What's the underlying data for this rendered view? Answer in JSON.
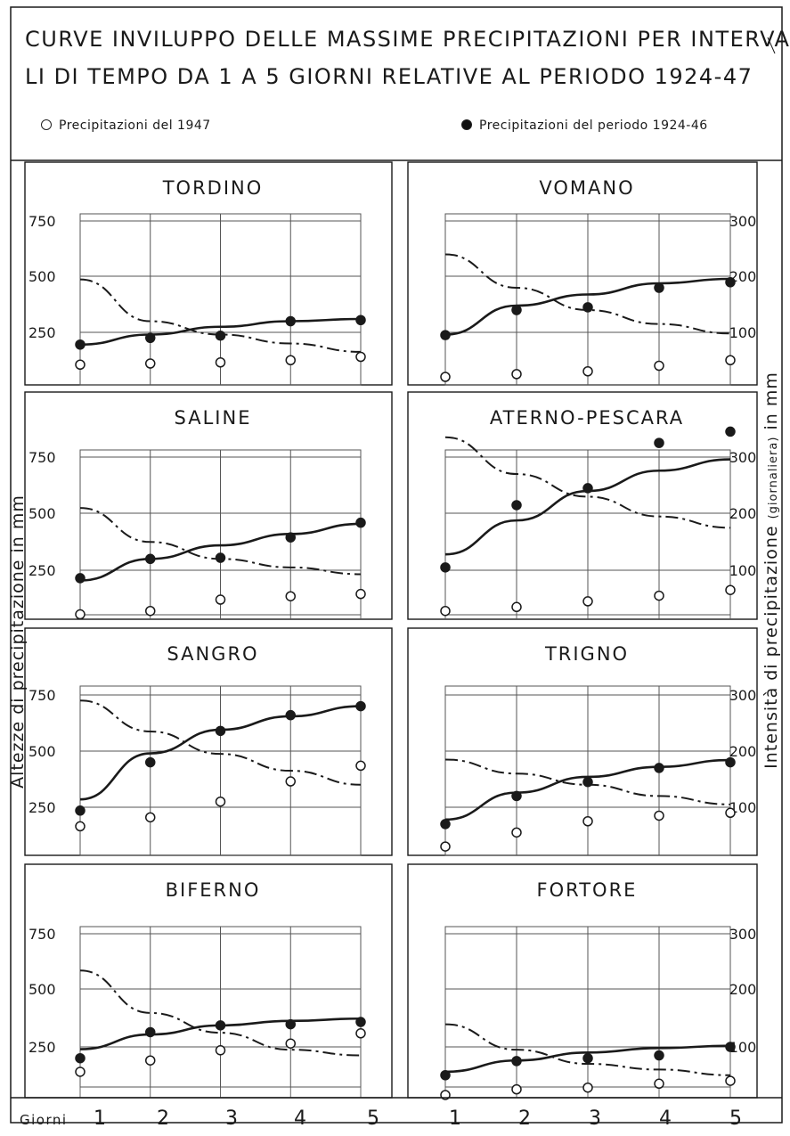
{
  "header": {
    "title_line1": "CURVE INVILUPPO DELLE MASSIME PRECIPITAZIONI PER INTERVAL",
    "title_line2": "LI DI TEMPO DA 1 A 5 GIORNI RELATIVE AL PERIODO 1924-47",
    "legend_1947": "Precipitazioni del 1947",
    "legend_period": "Precipitazioni del periodo 1924-46"
  },
  "axes": {
    "left_label": "Altezze di precipitazione in mm",
    "right_label_a": "Intensità di precipitazione ",
    "right_label_b": "(giornaliera)",
    "right_label_c": " in mm",
    "x_axis_title": "Giorni",
    "x_ticks": [
      "1",
      "2",
      "3",
      "4",
      "5"
    ]
  },
  "colors": {
    "ink": "#1a1a1a",
    "paper": "#ffffff"
  },
  "chart_data": [
    {
      "type": "scatter",
      "title": "TORDINO",
      "x": [
        1,
        2,
        3,
        4,
        5
      ],
      "left_ticks": [
        "750",
        "500",
        "250"
      ],
      "right_ticks": [],
      "ylim": [
        0,
        750
      ],
      "ylim_right": [
        0,
        300
      ],
      "series": [
        {
          "name": "Precipitazioni del 1947",
          "marker": "open",
          "values": [
            105,
            110,
            115,
            125,
            140
          ]
        },
        {
          "name": "Precipitazioni del periodo 1924-46",
          "marker": "filled",
          "values": [
            195,
            225,
            235,
            300,
            305
          ]
        }
      ],
      "envelope_altezze": [
        195,
        240,
        275,
        300,
        310
      ],
      "envelope_intensita": [
        195,
        120,
        96,
        80,
        65
      ]
    },
    {
      "type": "scatter",
      "title": "VOMANO",
      "x": [
        1,
        2,
        3,
        4,
        5
      ],
      "left_ticks": [],
      "right_ticks": [
        "300",
        "200",
        "100"
      ],
      "ylim": [
        0,
        750
      ],
      "ylim_right": [
        0,
        300
      ],
      "series": [
        {
          "name": "Precipitazioni del 1947",
          "marker": "open",
          "values": [
            20,
            25,
            30,
            40,
            50
          ]
        },
        {
          "name": "Precipitazioni del periodo 1924-46",
          "marker": "filled",
          "values": [
            95,
            140,
            145,
            180,
            190
          ]
        }
      ],
      "envelope_altezze": [
        240,
        370,
        420,
        470,
        490
      ],
      "envelope_intensita": [
        240,
        180,
        140,
        115,
        98
      ]
    },
    {
      "type": "scatter",
      "title": "SALINE",
      "x": [
        1,
        2,
        3,
        4,
        5
      ],
      "left_ticks": [
        "750",
        "500",
        "250"
      ],
      "right_ticks": [],
      "ylim": [
        0,
        750
      ],
      "ylim_right": [
        0,
        300
      ],
      "series": [
        {
          "name": "Precipitazioni del 1947",
          "marker": "open",
          "values": [
            55,
            70,
            120,
            135,
            145
          ]
        },
        {
          "name": "Precipitazioni del periodo 1924-46",
          "marker": "filled",
          "values": [
            215,
            300,
            305,
            395,
            460
          ]
        }
      ],
      "envelope_altezze": [
        205,
        300,
        360,
        410,
        455
      ],
      "envelope_intensita": [
        210,
        150,
        120,
        105,
        93
      ]
    },
    {
      "type": "scatter",
      "title": "ATERNO-PESCARA",
      "x": [
        1,
        2,
        3,
        4,
        5
      ],
      "left_ticks": [],
      "right_ticks": [
        "300",
        "200",
        "100"
      ],
      "ylim": [
        0,
        750
      ],
      "ylim_right": [
        0,
        300
      ],
      "series": [
        {
          "name": "Precipitazioni del 1947",
          "marker": "open",
          "values": [
            28,
            35,
            45,
            55,
            65
          ]
        },
        {
          "name": "Precipitazioni del periodo 1924-46",
          "marker": "filled",
          "values": [
            105,
            215,
            245,
            325,
            345
          ]
        }
      ],
      "envelope_altezze": [
        320,
        470,
        600,
        690,
        740
      ],
      "envelope_intensita": [
        335,
        270,
        230,
        195,
        175
      ]
    },
    {
      "type": "scatter",
      "title": "SANGRO",
      "x": [
        1,
        2,
        3,
        4,
        5
      ],
      "left_ticks": [
        "750",
        "500",
        "250"
      ],
      "right_ticks": [],
      "ylim": [
        0,
        750
      ],
      "ylim_right": [
        0,
        300
      ],
      "series": [
        {
          "name": "Precipitazioni del 1947",
          "marker": "open",
          "values": [
            165,
            205,
            275,
            365,
            435
          ]
        },
        {
          "name": "Precipitazioni del periodo 1924-46",
          "marker": "filled",
          "values": [
            235,
            450,
            590,
            660,
            700
          ]
        }
      ],
      "envelope_altezze": [
        285,
        490,
        595,
        655,
        700
      ],
      "envelope_intensita": [
        290,
        235,
        195,
        165,
        140
      ]
    },
    {
      "type": "scatter",
      "title": "TRIGNO",
      "x": [
        1,
        2,
        3,
        4,
        5
      ],
      "left_ticks": [],
      "right_ticks": [
        "300",
        "200",
        "100"
      ],
      "ylim": [
        0,
        750
      ],
      "ylim_right": [
        0,
        300
      ],
      "series": [
        {
          "name": "Precipitazioni del 1947",
          "marker": "open",
          "values": [
            30,
            55,
            75,
            85,
            90
          ]
        },
        {
          "name": "Precipitazioni del periodo 1924-46",
          "marker": "filled",
          "values": [
            70,
            120,
            145,
            170,
            180
          ]
        }
      ],
      "envelope_altezze": [
        195,
        315,
        385,
        430,
        460
      ],
      "envelope_intensita": [
        185,
        160,
        140,
        120,
        105
      ]
    },
    {
      "type": "scatter",
      "title": "BIFERNO",
      "x": [
        1,
        2,
        3,
        4,
        5
      ],
      "left_ticks": [
        "750",
        "500",
        "250"
      ],
      "right_ticks": [],
      "ylim": [
        0,
        750
      ],
      "ylim_right": [
        0,
        300
      ],
      "series": [
        {
          "name": "Precipitazioni del 1947",
          "marker": "open",
          "values": [
            140,
            190,
            235,
            265,
            310
          ]
        },
        {
          "name": "Precipitazioni del periodo 1924-46",
          "marker": "filled",
          "values": [
            200,
            315,
            345,
            350,
            360
          ]
        }
      ],
      "envelope_altezze": [
        240,
        305,
        345,
        365,
        375
      ],
      "envelope_intensita": [
        235,
        160,
        125,
        95,
        85
      ]
    },
    {
      "type": "scatter",
      "title": "FORTORE",
      "x": [
        1,
        2,
        3,
        4,
        5
      ],
      "left_ticks": [],
      "right_ticks": [
        "300",
        "200",
        "100"
      ],
      "ylim": [
        0,
        750
      ],
      "ylim_right": [
        0,
        300
      ],
      "series": [
        {
          "name": "Precipitazioni del 1947",
          "marker": "open",
          "values": [
            15,
            25,
            28,
            35,
            40
          ]
        },
        {
          "name": "Precipitazioni del periodo 1924-46",
          "marker": "filled",
          "values": [
            50,
            75,
            80,
            85,
            100
          ]
        }
      ],
      "envelope_altezze": [
        140,
        190,
        225,
        245,
        255
      ],
      "envelope_intensita": [
        140,
        95,
        70,
        60,
        50
      ]
    }
  ]
}
